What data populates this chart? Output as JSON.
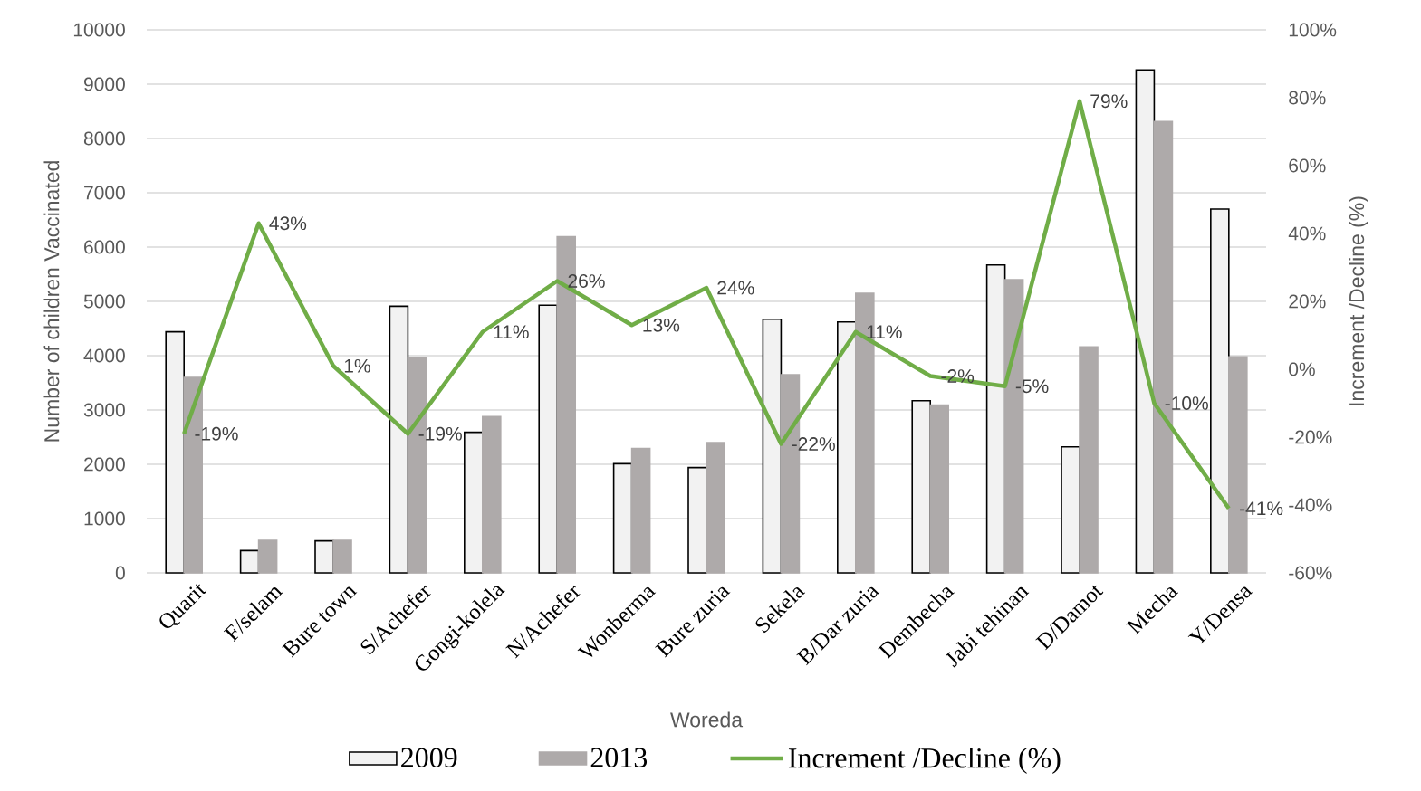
{
  "chart_data": {
    "type": "bar",
    "xlabel": "Woreda",
    "ylabel": "Number of children Vaccinated",
    "y2label": "Increment /Decline (%)",
    "categories": [
      "Quarit",
      "F/selam",
      "Bure town",
      "S/Achefer",
      "Gongi-kolela",
      "N/Achefer",
      "Wonberma",
      "Bure zuria",
      "Sekela",
      "B/Dar zuria",
      "Dembecha",
      "Jabi tehinan",
      "D/Damot",
      "Mecha",
      "Y/Densa"
    ],
    "series": [
      {
        "name": "2009",
        "color": "#f2f2f2",
        "values": [
          4440,
          410,
          590,
          4910,
          2590,
          4930,
          2010,
          1940,
          4670,
          4620,
          3170,
          5670,
          2320,
          9260,
          6700
        ]
      },
      {
        "name": "2013",
        "color": "#aeaaaa",
        "values": [
          3600,
          600,
          600,
          3960,
          2880,
          6190,
          2290,
          2400,
          3650,
          5150,
          3090,
          5400,
          4160,
          8310,
          3980
        ]
      },
      {
        "name": "Increment /Decline (%)",
        "type": "line",
        "axis": "y2",
        "color": "#70ad47",
        "values": [
          -19,
          43,
          1,
          -19,
          11,
          26,
          13,
          24,
          -22,
          11,
          -2,
          -5,
          79,
          -10,
          -41
        ],
        "value_labels": [
          "-19%",
          "43%",
          "1%",
          "-19%",
          "11%",
          "26%",
          "13%",
          "24%",
          "-22%",
          "11%",
          "-2%",
          "-5%",
          "79%",
          "-10%",
          "-41%"
        ]
      }
    ],
    "ylim": [
      0,
      10000
    ],
    "yticks": [
      0,
      1000,
      2000,
      3000,
      4000,
      5000,
      6000,
      7000,
      8000,
      9000,
      10000
    ],
    "y2lim": [
      -60,
      100
    ],
    "y2ticks": [
      {
        "value": -60,
        "label": "-60%"
      },
      {
        "value": -40,
        "label": "-40%"
      },
      {
        "value": -20,
        "label": "-20%"
      },
      {
        "value": 0,
        "label": "0%"
      },
      {
        "value": 20,
        "label": "20%"
      },
      {
        "value": 40,
        "label": "40%"
      },
      {
        "value": 60,
        "label": "60%"
      },
      {
        "value": 80,
        "label": "80%"
      },
      {
        "value": 100,
        "label": "100%"
      }
    ],
    "grid": "y",
    "legend": "bottom",
    "marker": "none",
    "line_style": "solid"
  }
}
